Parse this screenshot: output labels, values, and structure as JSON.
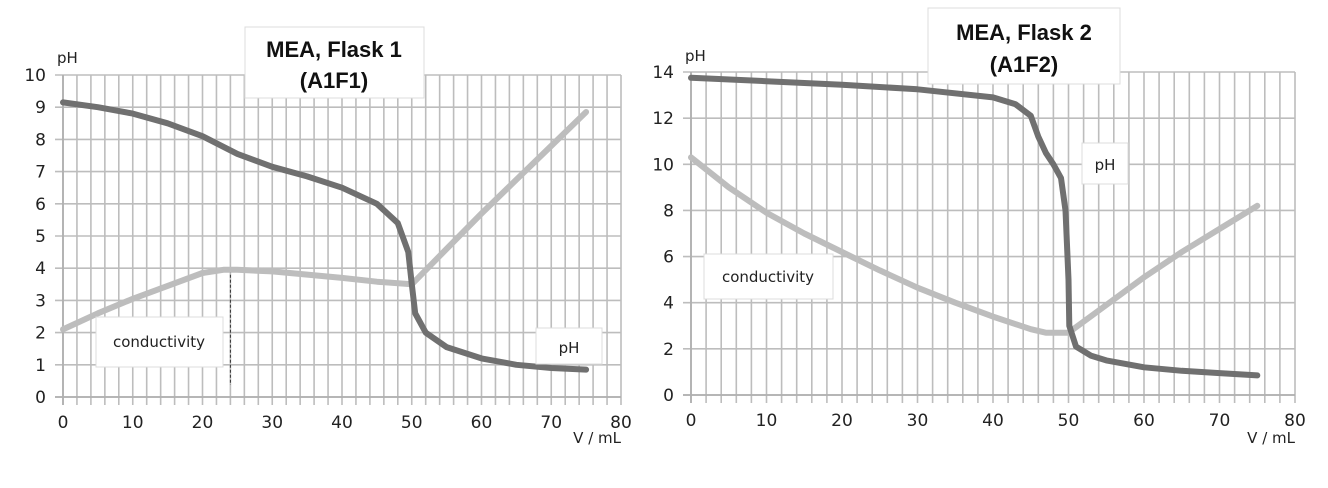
{
  "chart_data": [
    {
      "type": "line",
      "title": [
        "MEA, Flask 1",
        "(A1F1)"
      ],
      "xlabel": "V / mL",
      "ylabel": "pH",
      "xlim": [
        0,
        80
      ],
      "ylim": [
        0,
        10
      ],
      "xticks": [
        "0",
        "10",
        "20",
        "30",
        "40",
        "50",
        "60",
        "70",
        "80"
      ],
      "yticks": [
        "0",
        "1",
        "2",
        "3",
        "4",
        "5",
        "6",
        "7",
        "8",
        "9",
        "10"
      ],
      "grid": true,
      "x_minor_step": 2,
      "y_step": 1,
      "annotations": {
        "ph_label": "pH",
        "conductivity_label": "conductivity",
        "dashed_line_x": 24
      },
      "series": [
        {
          "name": "pH",
          "color": "#707070",
          "points": [
            [
              0,
              9.15
            ],
            [
              5,
              9.0
            ],
            [
              10,
              8.8
            ],
            [
              15,
              8.5
            ],
            [
              20,
              8.1
            ],
            [
              25,
              7.55
            ],
            [
              30,
              7.15
            ],
            [
              35,
              6.85
            ],
            [
              40,
              6.5
            ],
            [
              45,
              6.0
            ],
            [
              48,
              5.4
            ],
            [
              49.5,
              4.5
            ],
            [
              50,
              3.5
            ],
            [
              50.5,
              2.6
            ],
            [
              52,
              2.0
            ],
            [
              55,
              1.55
            ],
            [
              60,
              1.2
            ],
            [
              65,
              1.0
            ],
            [
              70,
              0.9
            ],
            [
              75,
              0.85
            ]
          ]
        },
        {
          "name": "conductivity",
          "color": "#bdbdbd",
          "points": [
            [
              0,
              2.1
            ],
            [
              5,
              2.6
            ],
            [
              10,
              3.05
            ],
            [
              15,
              3.45
            ],
            [
              20,
              3.85
            ],
            [
              23,
              3.95
            ],
            [
              25,
              3.95
            ],
            [
              30,
              3.9
            ],
            [
              40,
              3.7
            ],
            [
              45,
              3.58
            ],
            [
              50,
              3.5
            ],
            [
              55,
              4.6
            ],
            [
              60,
              5.7
            ],
            [
              65,
              6.75
            ],
            [
              70,
              7.8
            ],
            [
              75,
              8.85
            ]
          ]
        }
      ]
    },
    {
      "type": "line",
      "title": [
        "MEA, Flask 2",
        "(A1F2)"
      ],
      "xlabel": "V / mL",
      "ylabel": "pH",
      "xlim": [
        0,
        80
      ],
      "ylim": [
        0,
        14
      ],
      "xticks": [
        "0",
        "10",
        "20",
        "30",
        "40",
        "50",
        "60",
        "70",
        "80"
      ],
      "yticks": [
        "0",
        "2",
        "4",
        "6",
        "8",
        "10",
        "12",
        "14"
      ],
      "grid": true,
      "x_minor_step": 2,
      "y_step": 2,
      "annotations": {
        "ph_label": "pH",
        "conductivity_label": "conductivity"
      },
      "series": [
        {
          "name": "pH",
          "color": "#707070",
          "points": [
            [
              0,
              13.75
            ],
            [
              10,
              13.6
            ],
            [
              20,
              13.45
            ],
            [
              30,
              13.25
            ],
            [
              40,
              12.9
            ],
            [
              43,
              12.6
            ],
            [
              45,
              12.1
            ],
            [
              46,
              11.2
            ],
            [
              47,
              10.5
            ],
            [
              48,
              10.0
            ],
            [
              49,
              9.4
            ],
            [
              49.6,
              8.0
            ],
            [
              50,
              5.0
            ],
            [
              50.1,
              3.0
            ],
            [
              51,
              2.1
            ],
            [
              53,
              1.7
            ],
            [
              55,
              1.5
            ],
            [
              60,
              1.2
            ],
            [
              65,
              1.05
            ],
            [
              70,
              0.95
            ],
            [
              75,
              0.85
            ]
          ]
        },
        {
          "name": "conductivity",
          "color": "#bdbdbd",
          "points": [
            [
              0,
              10.3
            ],
            [
              5,
              9.0
            ],
            [
              10,
              7.9
            ],
            [
              15,
              7.0
            ],
            [
              20,
              6.2
            ],
            [
              25,
              5.4
            ],
            [
              30,
              4.65
            ],
            [
              35,
              4.0
            ],
            [
              40,
              3.4
            ],
            [
              45,
              2.85
            ],
            [
              47,
              2.7
            ],
            [
              50,
              2.7
            ],
            [
              55,
              3.9
            ],
            [
              60,
              5.1
            ],
            [
              65,
              6.2
            ],
            [
              70,
              7.2
            ],
            [
              75,
              8.2
            ]
          ]
        }
      ]
    }
  ]
}
